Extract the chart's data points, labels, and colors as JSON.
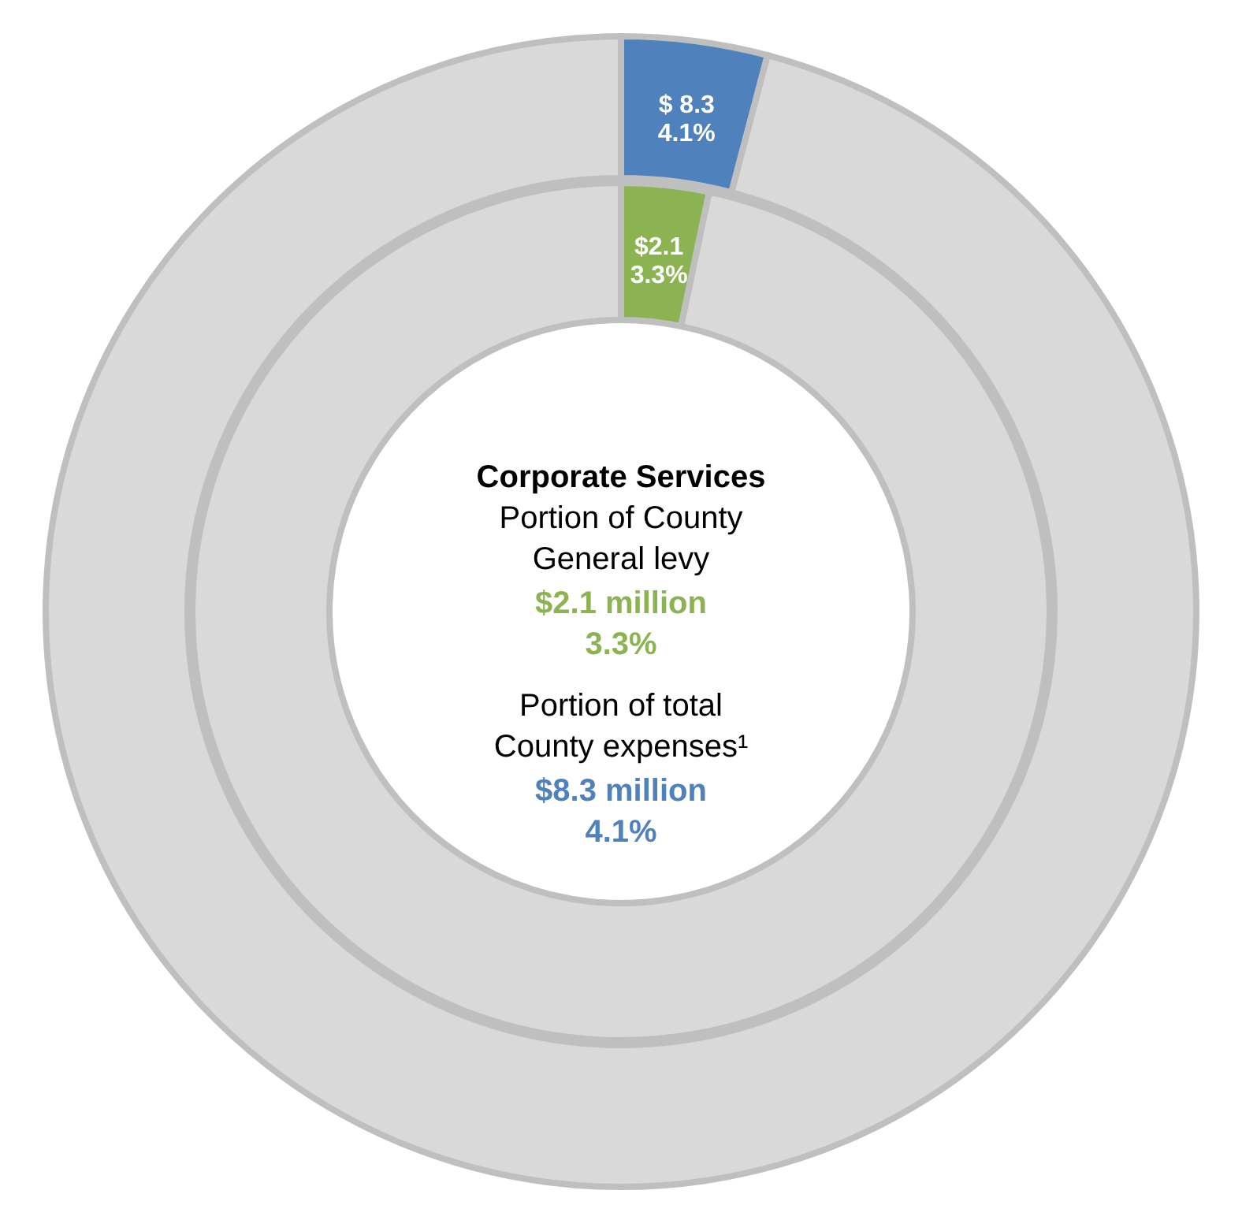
{
  "chart_data": {
    "type": "donut",
    "categories": [
      null,
      null
    ],
    "series": [
      {
        "values": [
          3.3,
          96.7
        ],
        "colors": [
          "#8cb352",
          "#d9d9d9"
        ],
        "value_labels": [
          "$2.1\n3.3%",
          null
        ]
      },
      {
        "values": [
          4.1,
          95.9
        ],
        "colors": [
          "#4f81bd",
          "#d9d9d9"
        ],
        "value_labels": [
          "$ 8.3\n4.1%",
          null
        ]
      }
    ],
    "annotations": [
      "Corporate Services",
      "Portion of County",
      "General levy",
      "$2.1 million",
      "3.3%",
      "Portion of total",
      "County expenses¹",
      "$8.3 million",
      "4.1%"
    ]
  }
}
